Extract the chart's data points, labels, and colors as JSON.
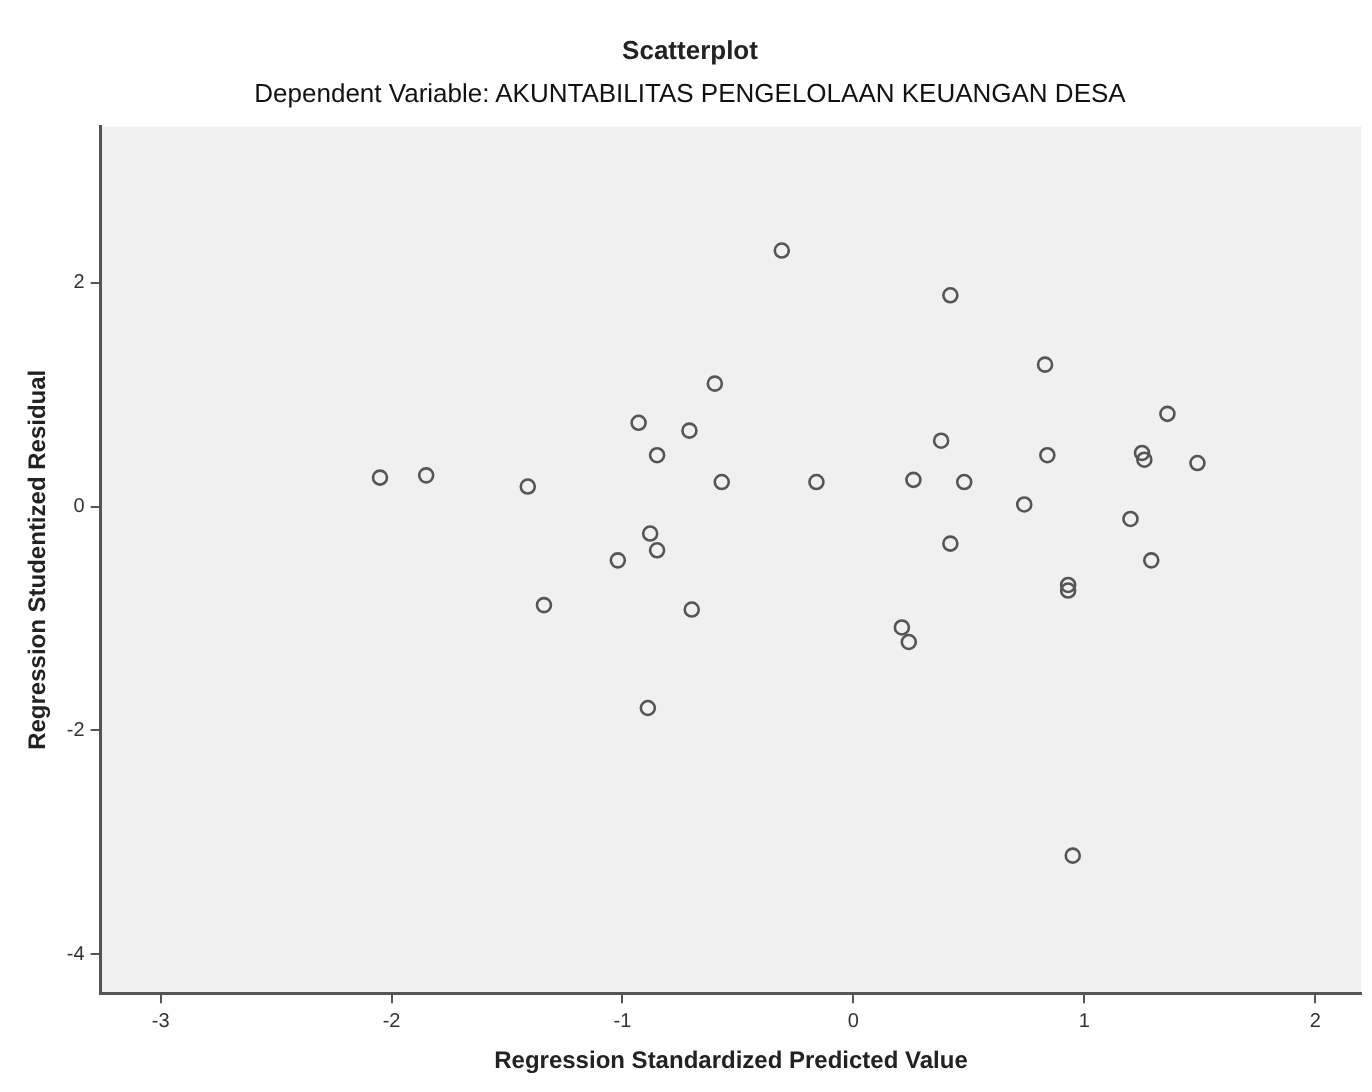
{
  "chart_data": {
    "type": "scatter",
    "title": "Scatterplot",
    "subtitle": "Dependent Variable: AKUNTABILITAS PENGELOLAAN KEUANGAN DESA",
    "xlabel": "Regression Standardized Predicted Value",
    "ylabel": "Regression Studentized Residual",
    "series": [
      {
        "color": "#555555",
        "x": [
          -2.05,
          -1.85,
          -1.41,
          -1.34,
          -1.02,
          -0.93,
          -0.85,
          -0.88,
          -0.85,
          -0.89,
          -0.71,
          -0.7,
          -0.6,
          -0.57,
          -0.16,
          -0.31,
          0.42,
          0.38,
          0.26,
          0.48,
          0.42,
          0.21,
          0.24,
          0.83,
          0.84,
          0.74,
          0.93,
          0.93,
          0.95,
          1.36,
          1.25,
          1.26,
          1.49,
          1.2,
          1.29
        ],
        "values": [
          0.26,
          0.28,
          0.18,
          -0.88,
          -0.48,
          0.75,
          0.46,
          -0.24,
          -0.39,
          -1.8,
          0.68,
          -0.92,
          1.1,
          0.22,
          0.22,
          2.29,
          1.89,
          0.59,
          0.24,
          0.22,
          -0.33,
          -1.08,
          -1.21,
          1.27,
          0.46,
          0.02,
          -0.7,
          -0.75,
          -3.12,
          0.83,
          0.48,
          0.42,
          0.39,
          -0.11,
          -0.48
        ]
      }
    ],
    "xlim": [
      -3.26,
      2.2
    ],
    "ylim": [
      -4.35,
      3.4
    ],
    "xticks": [
      -3,
      -2,
      -1,
      0,
      1,
      2
    ],
    "yticks": [
      -4,
      -2,
      0,
      2
    ],
    "grid": false,
    "legend": false,
    "marker": "circle"
  }
}
